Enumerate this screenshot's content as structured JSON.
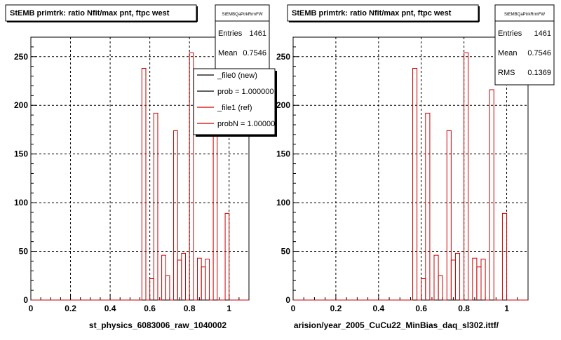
{
  "chart_data": [
    {
      "type": "bar",
      "title": "StEMB primtrk: ratio Nfit/max pnt, ftpc west",
      "xlabel": "st_physics_6083006_raw_1040002",
      "xlim": [
        0,
        1.1
      ],
      "ylim": [
        0,
        270
      ],
      "grid": true,
      "x_ticks": [
        "0",
        "0.2",
        "0.4",
        "0.6",
        "0.8",
        "1"
      ],
      "y_ticks": [
        "0",
        "50",
        "100",
        "150",
        "200",
        "250"
      ],
      "bins": {
        "width": 0.02,
        "values": [
          0,
          0,
          0,
          0,
          0,
          0,
          0,
          0,
          0,
          0,
          0,
          0,
          0,
          0,
          0,
          0,
          0,
          0,
          0,
          0,
          0,
          0,
          0,
          0,
          0,
          0,
          0,
          0,
          238,
          0,
          22,
          192,
          0,
          46,
          25,
          0,
          174,
          41,
          48,
          0,
          254,
          0,
          43,
          34,
          42,
          0,
          216,
          0,
          0,
          89,
          0,
          0,
          0,
          0,
          0
        ]
      },
      "stats": {
        "name": "StEMBQaPtrkRrmFW",
        "rows": [
          {
            "label": "Entries",
            "value": "1461"
          },
          {
            "label": "Mean",
            "value": "0.7546"
          }
        ]
      },
      "legend": [
        {
          "name": "_file0 (new)",
          "color": "#000000"
        },
        {
          "name": "prob = 1.000000",
          "color": "#000000"
        },
        {
          "name": "_file1 (ref)",
          "color": "#cc0000"
        },
        {
          "name": "probN = 1.000000",
          "color": "#cc0000"
        }
      ]
    },
    {
      "type": "bar",
      "title": "StEMB primtrk: ratio Nfit/max pnt, ftpc west",
      "xlabel": "arision/year_2005_CuCu22_MinBias_daq_sl302.ittf/",
      "xlim": [
        0,
        1.1
      ],
      "ylim": [
        0,
        270
      ],
      "grid": true,
      "x_ticks": [
        "0",
        "0.2",
        "0.4",
        "0.6",
        "0.8",
        "1"
      ],
      "y_ticks": [
        "0",
        "50",
        "100",
        "150",
        "200",
        "250"
      ],
      "bins": {
        "width": 0.02,
        "values": [
          0,
          0,
          0,
          0,
          0,
          0,
          0,
          0,
          0,
          0,
          0,
          0,
          0,
          0,
          0,
          0,
          0,
          0,
          0,
          0,
          0,
          0,
          0,
          0,
          0,
          0,
          0,
          0,
          238,
          0,
          22,
          192,
          0,
          46,
          25,
          0,
          174,
          41,
          48,
          0,
          254,
          0,
          43,
          34,
          42,
          0,
          216,
          0,
          0,
          89,
          0,
          0,
          0,
          0,
          0
        ]
      },
      "stats": {
        "name": "StEMBQaPtrkRrmFW",
        "rows": [
          {
            "label": "Entries",
            "value": "1461"
          },
          {
            "label": "Mean",
            "value": "0.7546"
          },
          {
            "label": "RMS",
            "value": "0.1369"
          }
        ]
      },
      "legend": []
    }
  ],
  "colors": {
    "histogram": "#cc0000",
    "axis": "#000000",
    "grid": "#000000",
    "background": "#ffffff"
  }
}
